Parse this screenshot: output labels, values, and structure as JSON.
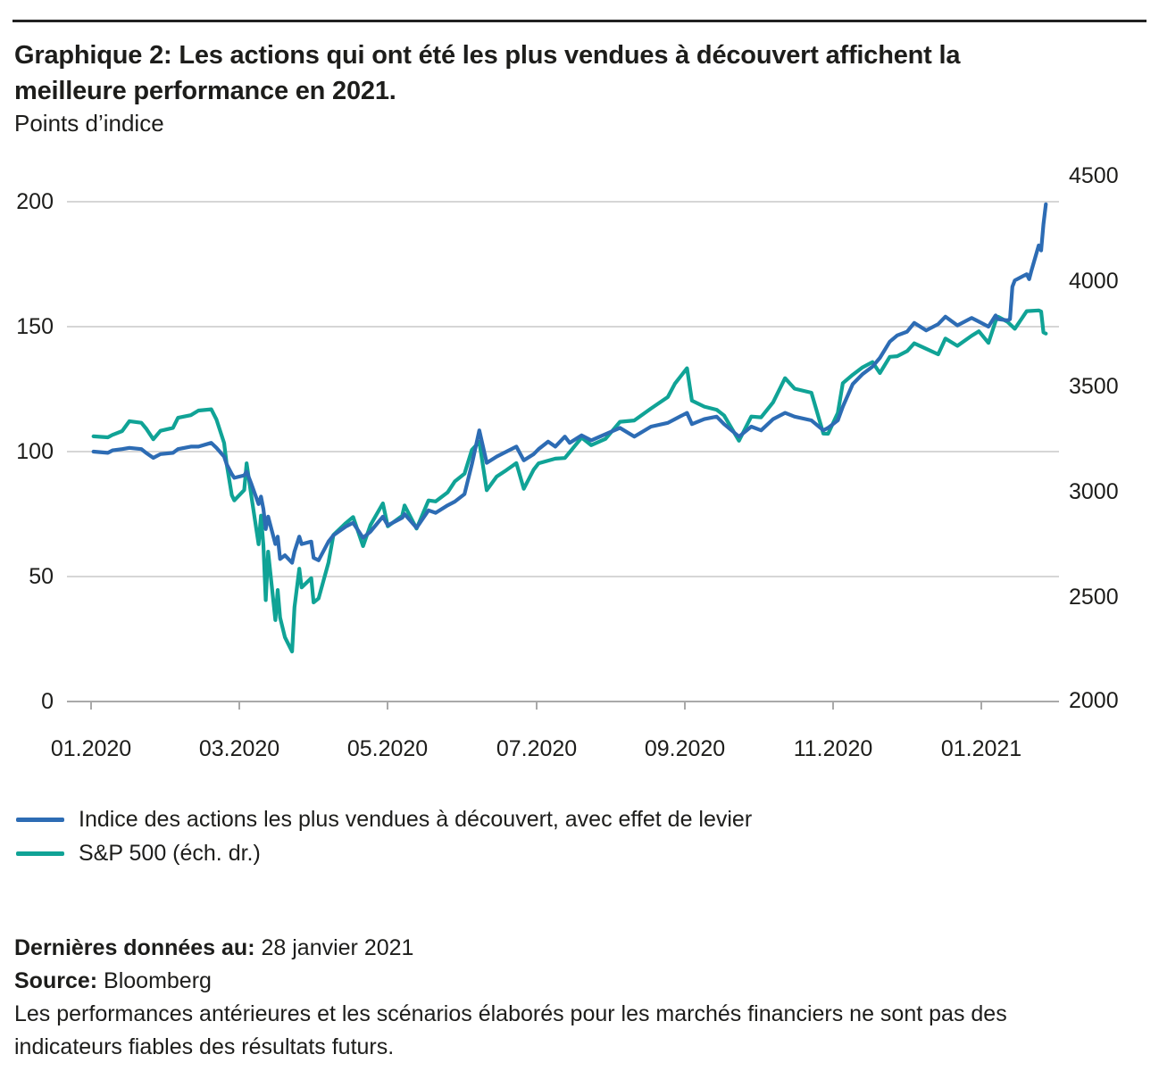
{
  "page": {
    "title_lines": [
      "Graphique 2: Les actions qui ont été les plus vendues à découvert affichent la",
      "meilleure performance en 2021."
    ],
    "subtitle": "Points d’indice"
  },
  "legend": {
    "items": [
      {
        "label": "Indice des actions les plus vendues à découvert, avec effet de levier",
        "color": "#2d6cb4"
      },
      {
        "label": "S&P 500 (éch. dr.)",
        "color": "#10a396"
      }
    ]
  },
  "footer": {
    "last_data_label": "Dernières données au:",
    "last_data_value": " 28 janvier 2021",
    "source_label": "Source:",
    "source_value": " Bloomberg",
    "disclaimer": "Les performances antérieures et les scénarios élaborés pour les marchés financiers ne sont pas des indicateurs fiables des résultats futurs."
  },
  "chart_data": {
    "type": "line",
    "title": "Graphique 2: Les actions qui ont été les plus vendues à découvert affichent la meilleure performance en 2021.",
    "ylabel_left": "Points d’indice",
    "grid": "horizontal",
    "legend_position": "below",
    "left_axis": {
      "ticks": [
        0,
        50,
        100,
        150,
        200
      ],
      "range": [
        0,
        200
      ]
    },
    "right_axis": {
      "ticks": [
        2000,
        2500,
        3000,
        3500,
        4000,
        4500
      ],
      "range": [
        2000,
        4500
      ]
    },
    "x_axis": {
      "ticks": [
        "01.2020",
        "03.2020",
        "05.2020",
        "07.2020",
        "09.2020",
        "11.2020",
        "01.2021"
      ]
    },
    "series": [
      {
        "name": "Indice des actions les plus vendues à découvert, avec effet de levier",
        "axis": "left",
        "color": "#2d6cb4",
        "dates": [
          "2020-01-02",
          "2020-01-08",
          "2020-01-10",
          "2020-01-14",
          "2020-01-17",
          "2020-01-22",
          "2020-01-24",
          "2020-01-27",
          "2020-01-30",
          "2020-02-04",
          "2020-02-06",
          "2020-02-11",
          "2020-02-14",
          "2020-02-19",
          "2020-02-21",
          "2020-02-24",
          "2020-02-25",
          "2020-02-27",
          "2020-02-28",
          "2020-03-03",
          "2020-03-04",
          "2020-03-06",
          "2020-03-09",
          "2020-03-10",
          "2020-03-11",
          "2020-03-12",
          "2020-03-13",
          "2020-03-16",
          "2020-03-17",
          "2020-03-18",
          "2020-03-20",
          "2020-03-23",
          "2020-03-24",
          "2020-03-26",
          "2020-03-27",
          "2020-03-31",
          "2020-04-01",
          "2020-04-03",
          "2020-04-07",
          "2020-04-09",
          "2020-04-14",
          "2020-04-17",
          "2020-04-21",
          "2020-04-24",
          "2020-04-29",
          "2020-05-01",
          "2020-05-07",
          "2020-05-08",
          "2020-05-13",
          "2020-05-18",
          "2020-05-21",
          "2020-05-26",
          "2020-05-29",
          "2020-06-02",
          "2020-06-05",
          "2020-06-08",
          "2020-06-11",
          "2020-06-15",
          "2020-06-19",
          "2020-06-23",
          "2020-06-26",
          "2020-06-30",
          "2020-07-02",
          "2020-07-06",
          "2020-07-09",
          "2020-07-13",
          "2020-07-15",
          "2020-07-20",
          "2020-07-24",
          "2020-07-30",
          "2020-08-05",
          "2020-08-11",
          "2020-08-18",
          "2020-08-25",
          "2020-08-28",
          "2020-09-02",
          "2020-09-04",
          "2020-09-09",
          "2020-09-14",
          "2020-09-17",
          "2020-09-23",
          "2020-09-28",
          "2020-10-02",
          "2020-10-07",
          "2020-10-12",
          "2020-10-16",
          "2020-10-23",
          "2020-10-28",
          "2020-10-30",
          "2020-11-03",
          "2020-11-05",
          "2020-11-09",
          "2020-11-13",
          "2020-11-17",
          "2020-11-20",
          "2020-11-24",
          "2020-11-27",
          "2020-12-01",
          "2020-12-04",
          "2020-12-09",
          "2020-12-14",
          "2020-12-17",
          "2020-12-22",
          "2020-12-28",
          "2020-12-31",
          "2021-01-04",
          "2021-01-07",
          "2021-01-08",
          "2021-01-12",
          "2021-01-13",
          "2021-01-14",
          "2021-01-15",
          "2021-01-20",
          "2021-01-21",
          "2021-01-22",
          "2021-01-25",
          "2021-01-26",
          "2021-01-27",
          "2021-01-28"
        ],
        "values": [
          100,
          99.5,
          100.5,
          101,
          101.5,
          101,
          99.5,
          97.5,
          99,
          99.5,
          101,
          102,
          102,
          103.5,
          101.5,
          98,
          95,
          91,
          89.5,
          90.5,
          92,
          87,
          79,
          82,
          77,
          69,
          74,
          63,
          66,
          57,
          58.5,
          55.5,
          60,
          66,
          63,
          64,
          57.5,
          56.5,
          64,
          66.5,
          70,
          71.5,
          65.5,
          68,
          74,
          70.5,
          73.5,
          75,
          69.5,
          76.5,
          75.5,
          78.5,
          80,
          83,
          95,
          108.5,
          95.5,
          98,
          100,
          102,
          96.5,
          99,
          101,
          104,
          102,
          106,
          103.5,
          106.5,
          104.5,
          107,
          109.5,
          106,
          110,
          111.5,
          113,
          115.5,
          111,
          113,
          114,
          111,
          106,
          110,
          108.5,
          113,
          115.5,
          114,
          112.5,
          108.5,
          109.5,
          112.5,
          118,
          127,
          131,
          134,
          137.5,
          144,
          146.5,
          148,
          151.5,
          148.5,
          151,
          154,
          150.5,
          153.5,
          152,
          150,
          154.5,
          153,
          152.5,
          153,
          166,
          168.5,
          171,
          169,
          172.5,
          182.5,
          180.5,
          191,
          199
        ]
      },
      {
        "name": "S&P 500 (éch. dr.)",
        "axis": "right",
        "color": "#10a396",
        "dates": [
          "2020-01-02",
          "2020-01-08",
          "2020-01-10",
          "2020-01-14",
          "2020-01-17",
          "2020-01-22",
          "2020-01-24",
          "2020-01-27",
          "2020-01-30",
          "2020-02-04",
          "2020-02-06",
          "2020-02-11",
          "2020-02-14",
          "2020-02-19",
          "2020-02-21",
          "2020-02-24",
          "2020-02-25",
          "2020-02-27",
          "2020-02-28",
          "2020-03-03",
          "2020-03-04",
          "2020-03-06",
          "2020-03-09",
          "2020-03-10",
          "2020-03-11",
          "2020-03-12",
          "2020-03-13",
          "2020-03-16",
          "2020-03-17",
          "2020-03-18",
          "2020-03-20",
          "2020-03-23",
          "2020-03-24",
          "2020-03-26",
          "2020-03-27",
          "2020-03-31",
          "2020-04-01",
          "2020-04-03",
          "2020-04-07",
          "2020-04-09",
          "2020-04-14",
          "2020-04-17",
          "2020-04-21",
          "2020-04-24",
          "2020-04-29",
          "2020-05-01",
          "2020-05-07",
          "2020-05-08",
          "2020-05-13",
          "2020-05-18",
          "2020-05-21",
          "2020-05-26",
          "2020-05-29",
          "2020-06-02",
          "2020-06-05",
          "2020-06-08",
          "2020-06-11",
          "2020-06-15",
          "2020-06-19",
          "2020-06-23",
          "2020-06-26",
          "2020-06-30",
          "2020-07-02",
          "2020-07-09",
          "2020-07-13",
          "2020-07-20",
          "2020-07-24",
          "2020-07-30",
          "2020-08-05",
          "2020-08-11",
          "2020-08-18",
          "2020-08-25",
          "2020-08-28",
          "2020-09-02",
          "2020-09-04",
          "2020-09-09",
          "2020-09-14",
          "2020-09-17",
          "2020-09-23",
          "2020-09-28",
          "2020-10-02",
          "2020-10-07",
          "2020-10-12",
          "2020-10-16",
          "2020-10-23",
          "2020-10-28",
          "2020-10-30",
          "2020-11-03",
          "2020-11-05",
          "2020-11-09",
          "2020-11-13",
          "2020-11-17",
          "2020-11-20",
          "2020-11-24",
          "2020-11-27",
          "2020-12-01",
          "2020-12-04",
          "2020-12-09",
          "2020-12-14",
          "2020-12-17",
          "2020-12-22",
          "2020-12-28",
          "2020-12-31",
          "2021-01-04",
          "2021-01-07",
          "2021-01-08",
          "2021-01-12",
          "2021-01-15",
          "2021-01-20",
          "2021-01-25",
          "2021-01-26",
          "2021-01-27",
          "2021-01-28"
        ],
        "values": [
          3258,
          3253,
          3265,
          3283,
          3330,
          3322,
          3295,
          3244,
          3284,
          3298,
          3346,
          3358,
          3380,
          3386,
          3338,
          3226,
          3128,
          2979,
          2954,
          3003,
          3130,
          2972,
          2746,
          2882,
          2741,
          2481,
          2711,
          2386,
          2529,
          2398,
          2305,
          2237,
          2447,
          2630,
          2541,
          2585,
          2470,
          2489,
          2659,
          2790,
          2846,
          2875,
          2737,
          2837,
          2940,
          2831,
          2881,
          2930,
          2820,
          2954,
          2949,
          2992,
          3044,
          3081,
          3194,
          3232,
          3002,
          3067,
          3098,
          3131,
          3009,
          3100,
          3130,
          3152,
          3155,
          3252,
          3216,
          3246,
          3327,
          3333,
          3390,
          3444,
          3508,
          3581,
          3427,
          3399,
          3384,
          3357,
          3237,
          3352,
          3348,
          3419,
          3534,
          3484,
          3465,
          3271,
          3270,
          3369,
          3510,
          3550,
          3585,
          3610,
          3558,
          3635,
          3638,
          3662,
          3699,
          3673,
          3647,
          3722,
          3687,
          3735,
          3756,
          3701,
          3804,
          3825,
          3801,
          3768,
          3852,
          3855,
          3850,
          3751,
          3745
        ]
      }
    ]
  }
}
